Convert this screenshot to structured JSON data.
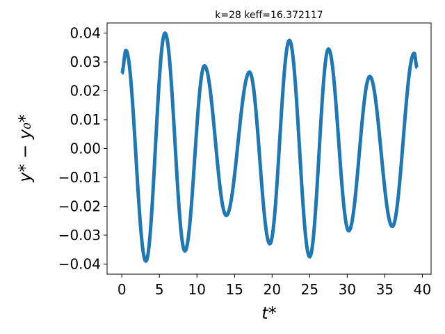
{
  "chart_data": {
    "type": "line",
    "title": "k=28 keff=16.372117",
    "xlabel": "t*",
    "ylabel": "y* − y₀*",
    "xlim": [
      -1.96,
      41.16
    ],
    "ylim": [
      -0.0435,
      0.0435
    ],
    "xticks": [
      0,
      5,
      10,
      15,
      20,
      25,
      30,
      35,
      40
    ],
    "xtick_labels": [
      "0",
      "5",
      "10",
      "15",
      "20",
      "25",
      "30",
      "35",
      "40"
    ],
    "yticks": [
      -0.04,
      -0.03,
      -0.02,
      -0.01,
      0.0,
      0.01,
      0.02,
      0.03,
      0.04
    ],
    "ytick_labels": [
      "−0.04",
      "−0.03",
      "−0.02",
      "−0.01",
      "0.00",
      "0.01",
      "0.02",
      "0.03",
      "0.04"
    ],
    "grid": false,
    "series": [
      {
        "color": "#1f77b4",
        "x": [
          0.0,
          0.55,
          3.2,
          5.75,
          8.4,
          11.0,
          13.9,
          17.0,
          19.7,
          22.3,
          25.0,
          27.5,
          30.2,
          33.0,
          36.0,
          38.9,
          39.3
        ],
        "y": [
          0.026,
          0.034,
          -0.039,
          0.04,
          -0.0355,
          0.0287,
          -0.0232,
          0.0265,
          -0.033,
          0.0375,
          -0.0375,
          0.0345,
          -0.0285,
          0.025,
          -0.027,
          0.033,
          0.028
        ]
      }
    ]
  }
}
